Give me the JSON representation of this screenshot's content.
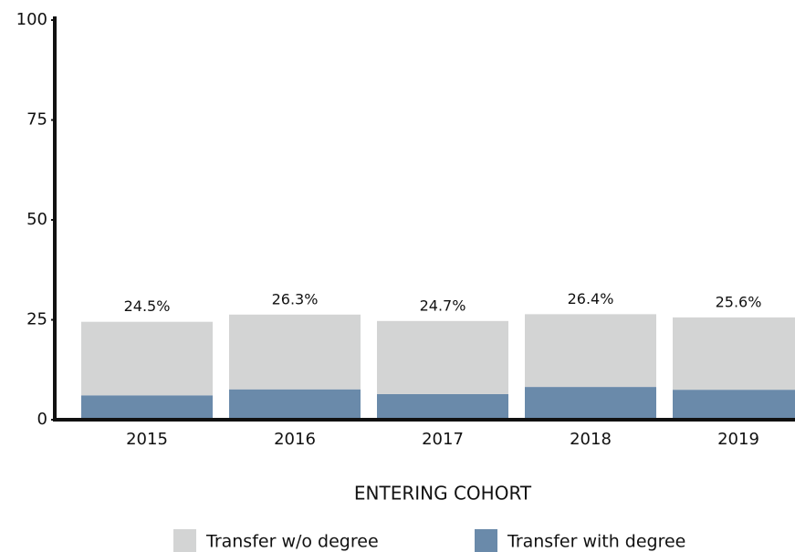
{
  "chart_data": {
    "type": "stacked_bar",
    "x_label": "ENTERING COHORT",
    "categories": [
      "2015",
      "2016",
      "2017",
      "2018",
      "2019"
    ],
    "series": [
      {
        "name": "Transfer with degree",
        "color": "#6a8aaa",
        "values": [
          6.1,
          7.6,
          6.4,
          8.2,
          7.5
        ],
        "value_labels": [
          "6.1%",
          "7.6%",
          "6.4%",
          "8.2%",
          "7.5%"
        ]
      },
      {
        "name": "Transfer w/o degree",
        "color": "#d3d4d4",
        "values": [
          18.4,
          18.7,
          18.3,
          18.2,
          18.1
        ]
      }
    ],
    "totals": [
      24.5,
      26.3,
      24.7,
      26.4,
      25.6
    ],
    "total_labels": [
      "24.5%",
      "26.3%",
      "24.7%",
      "26.4%",
      "25.6%"
    ],
    "ylim": [
      0,
      100
    ],
    "yticks": [
      0,
      25,
      50,
      75,
      100
    ]
  }
}
